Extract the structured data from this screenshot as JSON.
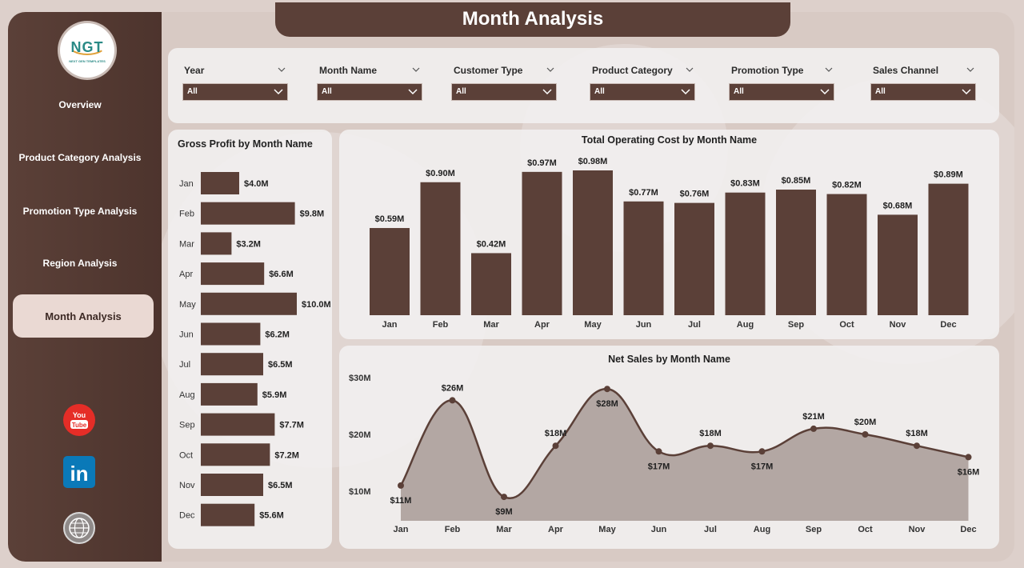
{
  "app": {
    "title": "Month Analysis",
    "logo_text": "NGT",
    "logo_subtext": "NEXT GEN TEMPLATES"
  },
  "sidebar": {
    "items": [
      {
        "label": "Overview"
      },
      {
        "label": "Product Category Analysis"
      },
      {
        "label": "Promotion Type Analysis"
      },
      {
        "label": "Region Analysis"
      },
      {
        "label": "Month Analysis",
        "active": true
      }
    ],
    "social_icons": [
      "youtube-icon",
      "linkedin-icon",
      "globe-icon"
    ],
    "youtube_text": "You Tube",
    "linkedin_text": "in"
  },
  "filters": [
    {
      "label": "Year",
      "value": "All"
    },
    {
      "label": "Month Name",
      "value": "All"
    },
    {
      "label": "Customer Type",
      "value": "All"
    },
    {
      "label": "Product Category",
      "value": "All"
    },
    {
      "label": "Promotion Type",
      "value": "All"
    },
    {
      "label": "Sales Channel",
      "value": "All"
    }
  ],
  "colors": {
    "brand": "#5b4038",
    "area_fill": "#b3a7a3",
    "line": "#5b4038",
    "active_nav": "#ead9d3"
  },
  "chart_data": [
    {
      "type": "bar",
      "orientation": "horizontal",
      "title": "Gross Profit by Month Name",
      "categories": [
        "Jan",
        "Feb",
        "Mar",
        "Apr",
        "May",
        "Jun",
        "Jul",
        "Aug",
        "Sep",
        "Oct",
        "Nov",
        "Dec"
      ],
      "values": [
        4.0,
        9.8,
        3.2,
        6.6,
        10.0,
        6.2,
        6.5,
        5.9,
        7.7,
        7.2,
        6.5,
        5.6
      ],
      "labels": [
        "$4.0M",
        "$9.8M",
        "$3.2M",
        "$6.6M",
        "$10.0M",
        "$6.2M",
        "$6.5M",
        "$5.9M",
        "$7.7M",
        "$7.2M",
        "$6.5M",
        "$5.6M"
      ],
      "unit": "$M",
      "xlim": [
        0,
        10.5
      ]
    },
    {
      "type": "bar",
      "title": "Total Operating Cost by Month Name",
      "categories": [
        "Jan",
        "Feb",
        "Mar",
        "Apr",
        "May",
        "Jun",
        "Jul",
        "Aug",
        "Sep",
        "Oct",
        "Nov",
        "Dec"
      ],
      "values": [
        0.59,
        0.9,
        0.42,
        0.97,
        0.98,
        0.77,
        0.76,
        0.83,
        0.85,
        0.82,
        0.68,
        0.89
      ],
      "labels": [
        "$0.59M",
        "$0.90M",
        "$0.42M",
        "$0.97M",
        "$0.98M",
        "$0.77M",
        "$0.76M",
        "$0.83M",
        "$0.85M",
        "$0.82M",
        "$0.68M",
        "$0.89M"
      ],
      "unit": "$M",
      "ylim": [
        0,
        1.0
      ]
    },
    {
      "type": "area",
      "title": "Net Sales by Month Name",
      "categories": [
        "Jan",
        "Feb",
        "Mar",
        "Apr",
        "May",
        "Jun",
        "Jul",
        "Aug",
        "Sep",
        "Oct",
        "Nov",
        "Dec"
      ],
      "values": [
        11,
        26,
        9,
        18,
        28,
        17,
        18,
        17,
        21,
        20,
        18,
        16
      ],
      "labels": [
        "$11M",
        "$26M",
        "$9M",
        "$18M",
        "$28M",
        "$17M",
        "$18M",
        "$17M",
        "$21M",
        "$20M",
        "$18M",
        "$16M"
      ],
      "label_positions": [
        "below",
        "above",
        "below",
        "above",
        "below",
        "below",
        "above",
        "below",
        "above",
        "above",
        "above",
        "below"
      ],
      "yticks": [
        10,
        20,
        30
      ],
      "ytick_labels": [
        "$10M",
        "$20M",
        "$30M"
      ],
      "ylim": [
        5,
        31
      ],
      "unit": "$M"
    }
  ]
}
